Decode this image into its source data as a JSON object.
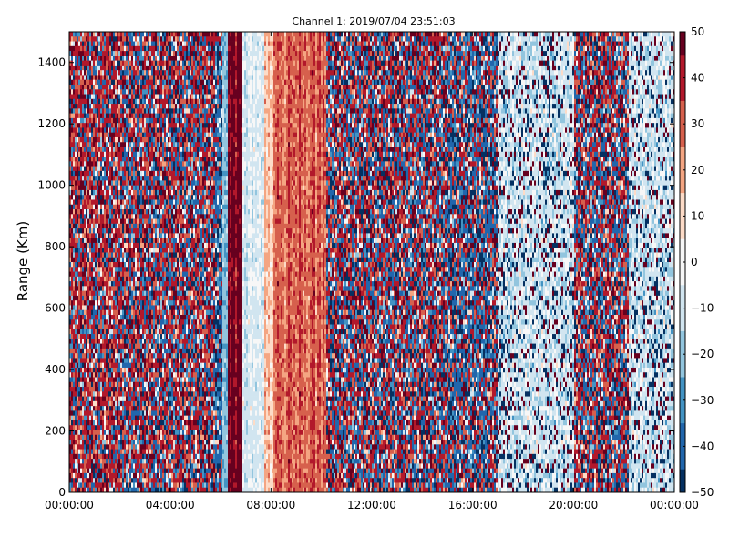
{
  "chart_data": {
    "type": "heatmap",
    "title": "Channel 1: 2019/07/04 23:51:03",
    "ylabel": "Range (Km)",
    "xlabel": "",
    "x_ticks": [
      "00:00:00",
      "04:00:00",
      "08:00:00",
      "12:00:00",
      "16:00:00",
      "20:00:00",
      "00:00:00"
    ],
    "y_ticks": [
      "0",
      "200",
      "400",
      "600",
      "800",
      "1000",
      "1200",
      "1400"
    ],
    "xlim": [
      "00:00:00",
      "00:00:00 (+1 day)"
    ],
    "ylim": [
      0,
      1500
    ],
    "colorbar": {
      "ticks": [
        "50",
        "40",
        "30",
        "20",
        "10",
        "0",
        "−10",
        "−20",
        "−30",
        "−40",
        "−50"
      ],
      "range": [
        -50,
        50
      ],
      "colormap": "RdBu_r",
      "colors": [
        "#053061",
        "#2166ac",
        "#4393c3",
        "#92c5de",
        "#d1e5f0",
        "#f7f7f7",
        "#fddbc7",
        "#f4a582",
        "#d6604d",
        "#b2182b",
        "#67001f"
      ]
    },
    "time_segments": [
      {
        "start_h": 0.0,
        "end_h": 2.0,
        "pattern": "noisy, mostly positive",
        "mean": 25
      },
      {
        "start_h": 2.0,
        "end_h": 5.8,
        "pattern": "noisy, mixed red and dark blue",
        "mean": 10
      },
      {
        "start_h": 5.8,
        "end_h": 6.1,
        "pattern": "mostly dark blue",
        "mean": -35
      },
      {
        "start_h": 6.1,
        "end_h": 6.3,
        "pattern": "light blue band",
        "mean": -20
      },
      {
        "start_h": 6.3,
        "end_h": 6.9,
        "pattern": "solid dark red band",
        "mean": 50
      },
      {
        "start_h": 6.9,
        "end_h": 7.7,
        "pattern": "pale light blue and white band",
        "mean": -8
      },
      {
        "start_h": 7.7,
        "end_h": 8.1,
        "pattern": "pale pink",
        "mean": 15
      },
      {
        "start_h": 8.1,
        "end_h": 10.2,
        "pattern": "smooth red and salmon band",
        "mean": 30
      },
      {
        "start_h": 10.2,
        "end_h": 15.0,
        "pattern": "noisy, mixed red and dark blue",
        "mean": 5
      },
      {
        "start_h": 15.0,
        "end_h": 17.0,
        "pattern": "noisy, mostly dark blue",
        "mean": -15
      },
      {
        "start_h": 17.0,
        "end_h": 20.0,
        "pattern": "mixed white and light blue stripes",
        "mean": -10
      },
      {
        "start_h": 20.0,
        "end_h": 22.2,
        "pattern": "noisy, mixed red and dark blue",
        "mean": 5
      },
      {
        "start_h": 22.2,
        "end_h": 24.0,
        "pattern": "mixed white and light blue stripes",
        "mean": -10
      }
    ],
    "grid": false,
    "legend": "colorbar-right"
  }
}
